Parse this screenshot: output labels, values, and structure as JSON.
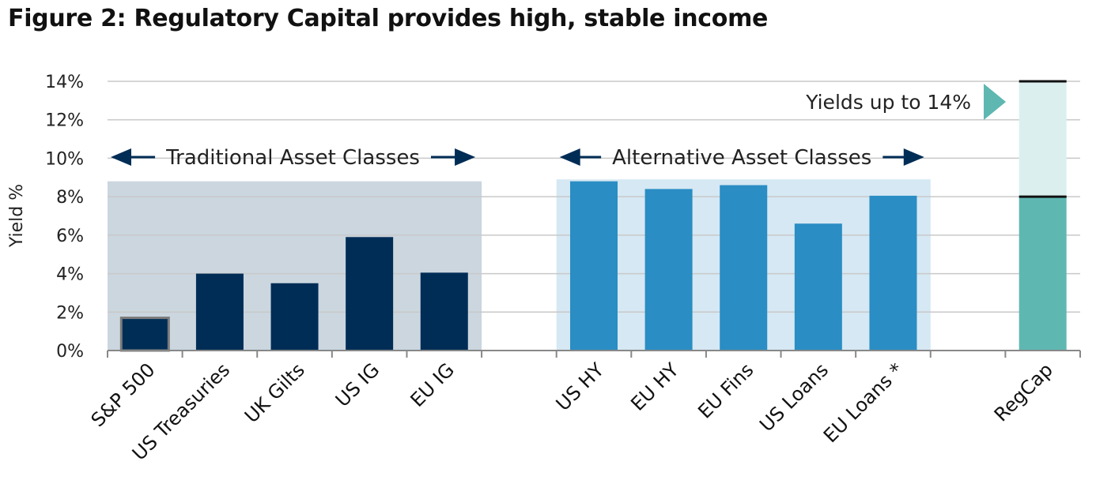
{
  "title": "Figure 2: Regulatory Capital provides high, stable income",
  "chart_data": {
    "type": "bar",
    "ylabel": "Yield  %",
    "ylim": [
      0,
      14
    ],
    "y_ticks": [
      "0%",
      "2%",
      "4%",
      "6%",
      "8%",
      "10%",
      "12%",
      "14%"
    ],
    "grid": true,
    "categories": [
      "S&P 500",
      "US Treasuries",
      "UK Gilts",
      "US IG",
      "EU IG",
      "",
      "US HY",
      "EU HY",
      "EU Fins",
      "US Loans",
      "EU Loans *",
      "",
      "RegCap"
    ],
    "values": [
      1.7,
      4.0,
      3.5,
      5.9,
      4.05,
      null,
      8.8,
      8.4,
      8.6,
      6.6,
      8.05,
      null,
      8.0
    ],
    "regcap_range": {
      "low": 8.0,
      "high": 14.0
    },
    "groups": [
      {
        "label": "Traditional Asset Classes",
        "from": 0,
        "to": 4,
        "top": 8.8
      },
      {
        "label": "Alternative Asset Classes",
        "from": 6,
        "to": 10,
        "top": 8.9
      }
    ],
    "annotation": "Yields up to 14%",
    "colors": {
      "traditional_bar": "#002d56",
      "alternative_bar": "#2a8dc4",
      "regcap_bar": "#5fb7b2",
      "regcap_range": "#dbefef",
      "traditional_bg": "#cbd6df",
      "alternative_bg": "#d5e8f3",
      "arrow": "#002d56",
      "note_arrow": "#5fb7b2",
      "grid": "#c9c9c9"
    }
  }
}
